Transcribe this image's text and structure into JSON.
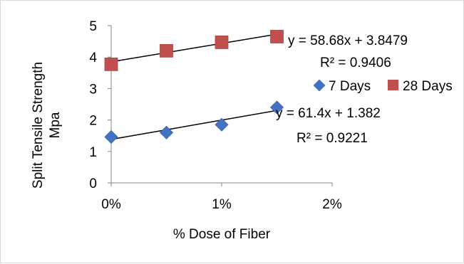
{
  "chart_data": {
    "type": "scatter",
    "title": "",
    "xlabel": "% Dose of Fiber",
    "ylabel_lines": [
      "Split Tensile Strength",
      "Mpa"
    ],
    "xlim": [
      0,
      0.02
    ],
    "ylim": [
      0,
      5
    ],
    "x_ticks": [
      0,
      0.01,
      0.02
    ],
    "x_tick_labels": [
      "0%",
      "1%",
      "2%"
    ],
    "y_ticks": [
      0,
      1,
      2,
      3,
      4,
      5
    ],
    "y_tick_labels": [
      "0",
      "1",
      "2",
      "3",
      "4",
      "5"
    ],
    "grid": false,
    "legend_position": "right",
    "series": [
      {
        "name": "7 Days",
        "marker": "diamond",
        "color": "#4472C4",
        "x": [
          0,
          0.005,
          0.01,
          0.015
        ],
        "y": [
          1.46,
          1.6,
          1.85,
          2.4
        ],
        "trendline": {
          "slope": 61.4,
          "intercept": 1.382
        },
        "equation": "y = 61.4x + 1.382",
        "r2": "R² = 0.9221"
      },
      {
        "name": "28 Days",
        "marker": "square",
        "color": "#C0504D",
        "x": [
          0,
          0.005,
          0.01,
          0.015
        ],
        "y": [
          3.77,
          4.2,
          4.47,
          4.65
        ],
        "trendline": {
          "slope": 58.68,
          "intercept": 3.8479
        },
        "equation": "y = 58.68x + 3.8479",
        "r2": "R² = 0.9406"
      }
    ]
  }
}
